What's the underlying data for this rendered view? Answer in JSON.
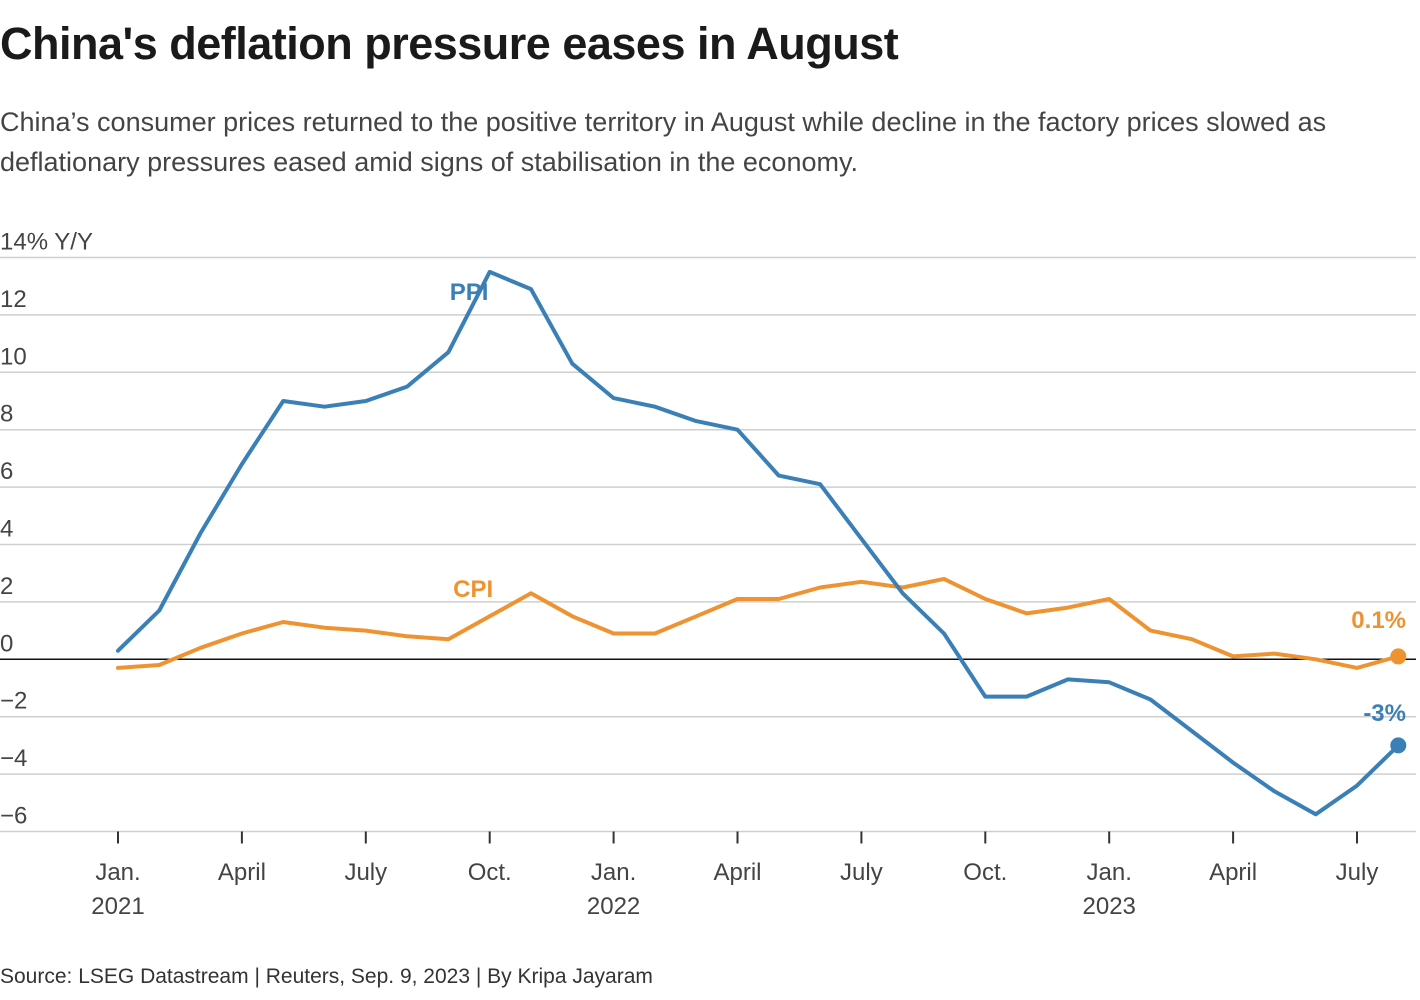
{
  "title": "China's deflation pressure eases in August",
  "subtitle": "China’s consumer prices returned to the positive territory in August while decline in the factory prices slowed as deflationary pressures eased amid signs of stabilisation in the economy.",
  "source": "Source: LSEG Datastream | Reuters, Sep. 9, 2023 | By Kripa Jayaram",
  "chart_data": {
    "type": "line",
    "ylabel_top": "14% Y/Y",
    "ylim": [
      -6,
      14
    ],
    "yticks": [
      {
        "value": 14,
        "label": "14% Y/Y"
      },
      {
        "value": 12,
        "label": "12"
      },
      {
        "value": 10,
        "label": "10"
      },
      {
        "value": 8,
        "label": "8"
      },
      {
        "value": 6,
        "label": "6"
      },
      {
        "value": 4,
        "label": "4"
      },
      {
        "value": 2,
        "label": "2"
      },
      {
        "value": 0,
        "label": "0"
      },
      {
        "value": -2,
        "label": "−2"
      },
      {
        "value": -4,
        "label": "−4"
      },
      {
        "value": -6,
        "label": "−6"
      }
    ],
    "xticks": [
      {
        "index": 0,
        "label": "Jan.",
        "year": "2021"
      },
      {
        "index": 3,
        "label": "April",
        "year": ""
      },
      {
        "index": 6,
        "label": "July",
        "year": ""
      },
      {
        "index": 9,
        "label": "Oct.",
        "year": ""
      },
      {
        "index": 12,
        "label": "Jan.",
        "year": "2022"
      },
      {
        "index": 15,
        "label": "April",
        "year": ""
      },
      {
        "index": 18,
        "label": "July",
        "year": ""
      },
      {
        "index": 21,
        "label": "Oct.",
        "year": ""
      },
      {
        "index": 24,
        "label": "Jan.",
        "year": "2023"
      },
      {
        "index": 27,
        "label": "April",
        "year": ""
      },
      {
        "index": 30,
        "label": "July",
        "year": ""
      }
    ],
    "months": [
      "2021-01",
      "2021-02",
      "2021-03",
      "2021-04",
      "2021-05",
      "2021-06",
      "2021-07",
      "2021-08",
      "2021-09",
      "2021-10",
      "2021-11",
      "2021-12",
      "2022-01",
      "2022-02",
      "2022-03",
      "2022-04",
      "2022-05",
      "2022-06",
      "2022-07",
      "2022-08",
      "2022-09",
      "2022-10",
      "2022-11",
      "2022-12",
      "2023-01",
      "2023-02",
      "2023-03",
      "2023-04",
      "2023-05",
      "2023-06",
      "2023-07",
      "2023-08"
    ],
    "series": [
      {
        "name": "PPI",
        "label": "PPI",
        "color": "#3a7fb5",
        "end_label": "-3%",
        "values": [
          0.3,
          1.7,
          4.4,
          6.8,
          9.0,
          8.8,
          9.0,
          9.5,
          10.7,
          13.5,
          12.9,
          10.3,
          9.1,
          8.8,
          8.3,
          8.0,
          6.4,
          6.1,
          4.2,
          2.3,
          0.9,
          -1.3,
          -1.3,
          -0.7,
          -0.8,
          -1.4,
          -2.5,
          -3.6,
          -4.6,
          -5.4,
          -4.4,
          -3.0
        ]
      },
      {
        "name": "CPI",
        "label": "CPI",
        "color": "#ee9332",
        "end_label": "0.1%",
        "values": [
          -0.3,
          -0.2,
          0.4,
          0.9,
          1.3,
          1.1,
          1.0,
          0.8,
          0.7,
          1.5,
          2.3,
          1.5,
          0.9,
          0.9,
          1.5,
          2.1,
          2.1,
          2.5,
          2.7,
          2.5,
          2.8,
          2.1,
          1.6,
          1.8,
          2.1,
          1.0,
          0.7,
          0.1,
          0.2,
          0.0,
          -0.3,
          0.1
        ]
      }
    ]
  }
}
